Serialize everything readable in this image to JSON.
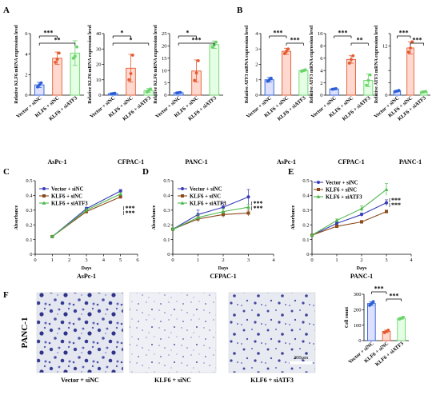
{
  "colors": {
    "vector_siNC": "#3b3eb8",
    "klf6_siNC": "#8b4a1c",
    "klf6_siATF3": "#4db84d",
    "bar_fill_vector": "#dde0ff",
    "bar_fill_klf6": "#ffd9d0",
    "bar_fill_siatf3": "#e4ffe4",
    "dot_bar_vector": "#2b5fd8",
    "dot_bar_klf6": "#e35a2f",
    "dot_bar_siatf3": "#6ad36a"
  },
  "figure": {
    "panel_letters": [
      "A",
      "B",
      "C",
      "D",
      "E",
      "F"
    ],
    "side_label": "PANC-1",
    "scale_bar_text": "200μm",
    "image_captions": [
      "Vector + siNC",
      "KLF6 + siNC",
      "KLF6 + siATF3"
    ],
    "image_icons": [
      "microscopy-image",
      "microscopy-image",
      "microscopy-image"
    ]
  },
  "chart_data": [
    {
      "id": "A1",
      "type": "bar",
      "title": "AsPc-1",
      "ylabel": "Relative KLF6 mRNA expression level",
      "categories": [
        "Vector + siNC",
        "KLF6 + siNC",
        "KLF6 + siATF3"
      ],
      "values": [
        1.0,
        3.6,
        4.1
      ],
      "errors": [
        0.25,
        0.6,
        1.2
      ],
      "points": [
        [
          0.8,
          1.0,
          1.2
        ],
        [
          3.2,
          3.5,
          4.1
        ],
        [
          3.6,
          3.8,
          4.7
        ]
      ],
      "ylim": [
        0,
        6
      ],
      "yticks": [
        0,
        2,
        4,
        6
      ],
      "significance": [
        {
          "from": 0,
          "to": 1,
          "label": "***"
        },
        {
          "from": 0,
          "to": 2,
          "label": "**"
        }
      ]
    },
    {
      "id": "A2",
      "type": "bar",
      "title": "CFPAC-1",
      "ylabel": "Relative KLF6 mRNA expression level",
      "categories": [
        "Vector + siNC",
        "KLF6 + siNC",
        "KLF6 + siATF3"
      ],
      "values": [
        1.0,
        17.5,
        3.0
      ],
      "errors": [
        0.3,
        9.0,
        1.3
      ],
      "points": [
        [
          0.8,
          1.0,
          1.2
        ],
        [
          10,
          14,
          26
        ],
        [
          2.0,
          3.0,
          4.0
        ]
      ],
      "ylim": [
        0,
        40
      ],
      "yticks": [
        0,
        10,
        20,
        30,
        40
      ],
      "significance": [
        {
          "from": 0,
          "to": 1,
          "label": "*"
        },
        {
          "from": 0,
          "to": 2,
          "label": "*"
        }
      ]
    },
    {
      "id": "A3",
      "type": "bar",
      "title": "PANC-1",
      "ylabel": "Relative KLF6 mRNA expression level",
      "categories": [
        "Vector + siNC",
        "KLF6 + siNC",
        "KLF6 + siATF3"
      ],
      "values": [
        1.0,
        9.8,
        20.5
      ],
      "errors": [
        0.2,
        4.5,
        1.5
      ],
      "points": [
        [
          0.9,
          1.0,
          1.1
        ],
        [
          6.0,
          9.0,
          14.0
        ],
        [
          19.5,
          20.5,
          21.5
        ]
      ],
      "ylim": [
        0,
        25
      ],
      "yticks": [
        0,
        5,
        10,
        15,
        20,
        25
      ],
      "significance": [
        {
          "from": 0,
          "to": 1,
          "label": "*"
        },
        {
          "from": 0,
          "to": 2,
          "label": "***"
        }
      ]
    },
    {
      "id": "B1",
      "type": "bar",
      "title": "AsPc-1",
      "ylabel": "Relative ATF3 mRNA expression level",
      "categories": [
        "Vector + siNC",
        "KLF6 + siNC",
        "KLF6 + siATF3"
      ],
      "values": [
        1.0,
        2.85,
        1.6
      ],
      "errors": [
        0.15,
        0.2,
        0.05
      ],
      "points": [
        [
          0.9,
          1.0,
          1.1
        ],
        [
          2.7,
          2.85,
          3.0
        ],
        [
          1.55,
          1.6,
          1.65
        ]
      ],
      "ylim": [
        0,
        4
      ],
      "yticks": [
        0,
        1,
        2,
        3,
        4
      ],
      "significance": [
        {
          "from": 0,
          "to": 1,
          "label": "***"
        },
        {
          "from": 1,
          "to": 2,
          "label": "***"
        }
      ]
    },
    {
      "id": "B2",
      "type": "bar",
      "title": "CFPAC-1",
      "ylabel": "Relative ATF3 mRNA expression level",
      "categories": [
        "Vector + siNC",
        "KLF6 + siNC",
        "KLF6 + siATF3"
      ],
      "values": [
        1.0,
        5.8,
        2.4
      ],
      "errors": [
        0.05,
        0.6,
        1.0
      ],
      "points": [
        [
          0.95,
          1.0,
          1.05
        ],
        [
          5.2,
          5.8,
          6.4
        ],
        [
          1.6,
          2.4,
          3.3
        ]
      ],
      "ylim": [
        0,
        10
      ],
      "yticks": [
        0,
        2,
        4,
        6,
        8,
        10
      ],
      "significance": [
        {
          "from": 0,
          "to": 1,
          "label": "***"
        },
        {
          "from": 1,
          "to": 2,
          "label": "**"
        }
      ]
    },
    {
      "id": "B3",
      "type": "bar",
      "title": "PANC-1",
      "ylabel": "Relative ATF3 mRNA expression level",
      "categories": [
        "Vector + siNC",
        "KLF6 + siNC",
        "KLF6 + siATF3"
      ],
      "values": [
        1.0,
        11.5,
        0.8
      ],
      "errors": [
        0.2,
        1.5,
        0.1
      ],
      "points": [
        [
          0.85,
          1.0,
          1.15
        ],
        [
          10.5,
          11.5,
          13.0
        ],
        [
          0.7,
          0.8,
          0.9
        ]
      ],
      "ylim": [
        0,
        15
      ],
      "yticks": [
        0,
        3,
        6,
        9,
        12,
        15
      ],
      "tick_labels": [
        "0",
        "",
        "",
        "",
        "12",
        ""
      ],
      "significance": [
        {
          "from": 0,
          "to": 1,
          "label": "***"
        },
        {
          "from": 1,
          "to": 2,
          "label": "***"
        }
      ]
    },
    {
      "id": "C",
      "type": "line",
      "title": "AsPc-1",
      "xlabel": "Days",
      "ylabel": "Absorbance",
      "x": [
        1,
        3,
        5
      ],
      "xlim": [
        0,
        6
      ],
      "xticks": [
        0,
        1,
        2,
        3,
        4,
        5,
        6
      ],
      "ylim": [
        0,
        0.5
      ],
      "yticks": [
        0,
        0.1,
        0.2,
        0.3,
        0.4,
        0.5
      ],
      "series": [
        {
          "name": "Vector + siNC",
          "values": [
            0.12,
            0.31,
            0.43
          ],
          "errors": [
            0.005,
            0.01,
            0.01
          ]
        },
        {
          "name": "KLF6 + siNC",
          "values": [
            0.12,
            0.29,
            0.39
          ],
          "errors": [
            0.005,
            0.01,
            0.01
          ]
        },
        {
          "name": "KLF6 + siATF3",
          "values": [
            0.12,
            0.3,
            0.41
          ],
          "errors": [
            0.005,
            0.01,
            0.01
          ]
        }
      ],
      "significance": [
        "***",
        "***"
      ]
    },
    {
      "id": "D",
      "type": "line",
      "title": "CFPAC-1",
      "xlabel": "Days",
      "ylabel": "Absorbance",
      "x": [
        0,
        1,
        2,
        3
      ],
      "xlim": [
        0,
        4
      ],
      "xticks": [
        0,
        1,
        2,
        3,
        4
      ],
      "ylim": [
        0,
        0.5
      ],
      "yticks": [
        0,
        0.1,
        0.2,
        0.3,
        0.4,
        0.5
      ],
      "series": [
        {
          "name": "Vector + siNC",
          "values": [
            0.17,
            0.27,
            0.32,
            0.39
          ],
          "errors": [
            0.01,
            0.03,
            0.03,
            0.05
          ]
        },
        {
          "name": "KLF6 + siNC",
          "values": [
            0.17,
            0.24,
            0.27,
            0.28
          ],
          "errors": [
            0.01,
            0.02,
            0.02,
            0.02
          ]
        },
        {
          "name": "KLF6 + siATF3",
          "values": [
            0.17,
            0.25,
            0.29,
            0.32
          ],
          "errors": [
            0.01,
            0.02,
            0.02,
            0.02
          ]
        }
      ],
      "significance": [
        "***",
        "***"
      ]
    },
    {
      "id": "E",
      "type": "line",
      "title": "PANC-1",
      "xlabel": "Days",
      "ylabel": "Absorbance",
      "x": [
        0,
        1,
        2,
        3
      ],
      "xlim": [
        0,
        4
      ],
      "xticks": [
        0,
        1,
        2,
        3,
        4
      ],
      "ylim": [
        0,
        0.5
      ],
      "yticks": [
        0,
        0.1,
        0.2,
        0.3,
        0.4,
        0.5
      ],
      "series": [
        {
          "name": "Vector + siNC",
          "values": [
            0.13,
            0.21,
            0.27,
            0.35
          ],
          "errors": [
            0.005,
            0.01,
            0.01,
            0.02
          ]
        },
        {
          "name": "KLF6 + siNC",
          "values": [
            0.13,
            0.19,
            0.22,
            0.29
          ],
          "errors": [
            0.005,
            0.01,
            0.01,
            0.01
          ]
        },
        {
          "name": "KLF6 + siATF3",
          "values": [
            0.13,
            0.23,
            0.31,
            0.44
          ],
          "errors": [
            0.005,
            0.01,
            0.02,
            0.04
          ]
        }
      ],
      "significance": [
        "***",
        "***"
      ]
    },
    {
      "id": "F",
      "type": "bar",
      "title": "",
      "ylabel": "Cell count",
      "categories": [
        "Vector + siNC",
        "KLF6 + siNC",
        "KLF6 + siATF3"
      ],
      "values": [
        240,
        60,
        145
      ],
      "errors": [
        12,
        8,
        6
      ],
      "points": [
        [
          228,
          240,
          252
        ],
        [
          52,
          60,
          68
        ],
        [
          139,
          145,
          151
        ]
      ],
      "ylim": [
        0,
        300
      ],
      "yticks": [
        0,
        100,
        200,
        300
      ],
      "significance": [
        {
          "from": 0,
          "to": 1,
          "label": "***"
        },
        {
          "from": 1,
          "to": 2,
          "label": "***"
        }
      ]
    }
  ]
}
